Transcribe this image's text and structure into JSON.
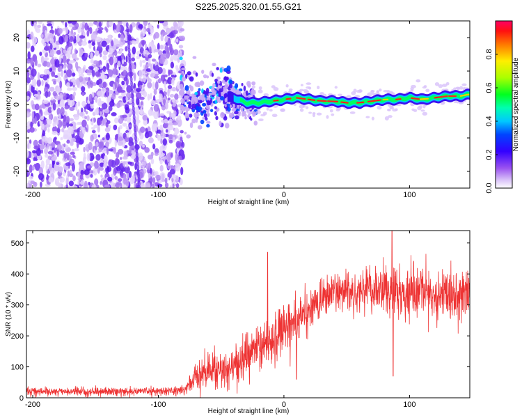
{
  "title": "S225.2025.320.01.55.G21",
  "chart_data": [
    {
      "type": "heatmap",
      "xlabel": "Height of straight line (km)",
      "ylabel": "Frequency (Hz)",
      "xlim": [
        -205,
        148
      ],
      "ylim": [
        -25,
        25
      ],
      "xticks": [
        -200,
        -100,
        0,
        100
      ],
      "yticks": [
        20,
        10,
        0,
        -10,
        -20
      ],
      "colorbar": {
        "label": "Normalized spectral amplitude",
        "range": [
          0,
          1
        ],
        "ticks": [
          0.0,
          0.2,
          0.4,
          0.6,
          0.8
        ],
        "tick_labels": [
          "0.0",
          "0.2",
          "0.4",
          "0.6",
          "0.8"
        ]
      },
      "noise_region_x": [
        -205,
        -80
      ],
      "signal_track": {
        "x": [
          -80,
          -70,
          -60,
          -50,
          -40,
          -30,
          -20,
          -10,
          0,
          10,
          20,
          30,
          40,
          50,
          60,
          70,
          80,
          90,
          100,
          110,
          120,
          130,
          140,
          148
        ],
        "freq_hz": [
          1.0,
          1.5,
          2.0,
          2.5,
          2.0,
          0.5,
          0.5,
          1.0,
          1.5,
          2.0,
          1.5,
          1.0,
          1.0,
          0.5,
          0.5,
          1.0,
          1.5,
          1.5,
          2.0,
          1.5,
          2.0,
          2.5,
          2.5,
          3.0
        ]
      }
    },
    {
      "type": "line",
      "xlabel": "Height of straight line (km)",
      "ylabel": "SNR (10 * v/v)",
      "xlim": [
        -205,
        148
      ],
      "ylim": [
        0,
        540
      ],
      "xticks": [
        -200,
        -100,
        0,
        100
      ],
      "yticks": [
        0,
        100,
        200,
        300,
        400,
        500
      ],
      "series": [
        {
          "name": "SNR",
          "color": "#ee3333",
          "x": [
            -205,
            -190,
            -170,
            -150,
            -130,
            -110,
            -90,
            -80,
            -75,
            -70,
            -65,
            -60,
            -55,
            -50,
            -45,
            -40,
            -35,
            -30,
            -25,
            -20,
            -15,
            -10,
            -5,
            0,
            5,
            10,
            15,
            20,
            25,
            30,
            35,
            40,
            50,
            60,
            70,
            80,
            86,
            90,
            100,
            110,
            120,
            130,
            140,
            148
          ],
          "mean": [
            22,
            20,
            20,
            20,
            20,
            22,
            22,
            25,
            40,
            70,
            85,
            90,
            90,
            95,
            95,
            100,
            110,
            130,
            150,
            160,
            175,
            190,
            210,
            225,
            240,
            250,
            265,
            280,
            300,
            320,
            330,
            340,
            345,
            345,
            350,
            340,
            330,
            335,
            340,
            330,
            330,
            330,
            335,
            335
          ],
          "noise": [
            12,
            12,
            12,
            12,
            12,
            12,
            12,
            15,
            30,
            45,
            50,
            55,
            55,
            55,
            60,
            60,
            65,
            70,
            75,
            70,
            75,
            70,
            70,
            70,
            70,
            65,
            60,
            60,
            60,
            60,
            60,
            60,
            60,
            65,
            70,
            75,
            80,
            75,
            75,
            75,
            75,
            75,
            75,
            75
          ],
          "spikes": [
            {
              "x": -13,
              "y": 470
            },
            {
              "x": 86,
              "y": 540
            },
            {
              "x": 87,
              "y": 70
            },
            {
              "x": 10,
              "y": 60
            }
          ]
        }
      ]
    }
  ]
}
